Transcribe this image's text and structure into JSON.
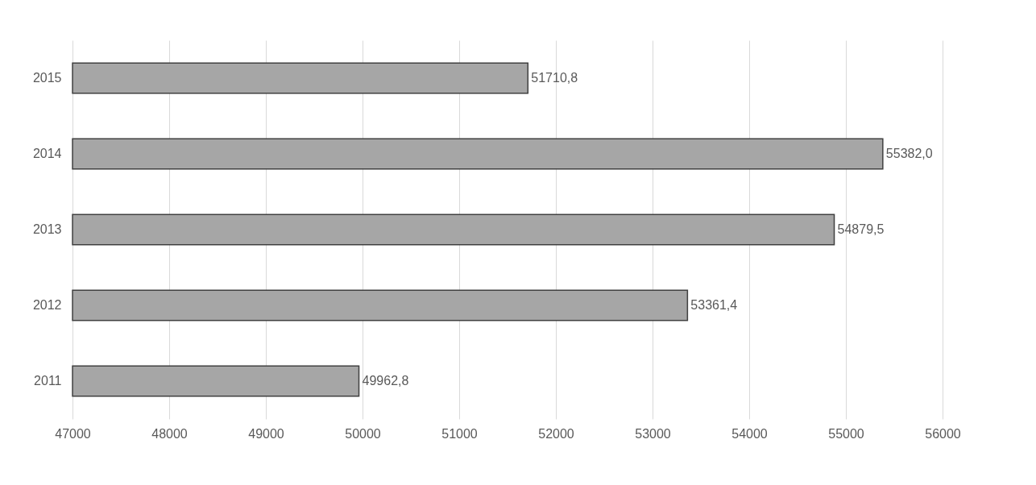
{
  "chart_data": {
    "type": "bar",
    "orientation": "horizontal",
    "categories": [
      "2015",
      "2014",
      "2013",
      "2012",
      "2011"
    ],
    "values": [
      51710.8,
      55382.0,
      54879.5,
      53361.4,
      49962.8
    ],
    "value_labels": [
      "51710,8",
      "55382,0",
      "54879,5",
      "53361,4",
      "49962,8"
    ],
    "color": "#a6a6a6",
    "xlim": [
      47000,
      56000
    ],
    "xticks": [
      47000,
      48000,
      49000,
      50000,
      51000,
      52000,
      53000,
      54000,
      55000,
      56000
    ],
    "grid": "x"
  }
}
